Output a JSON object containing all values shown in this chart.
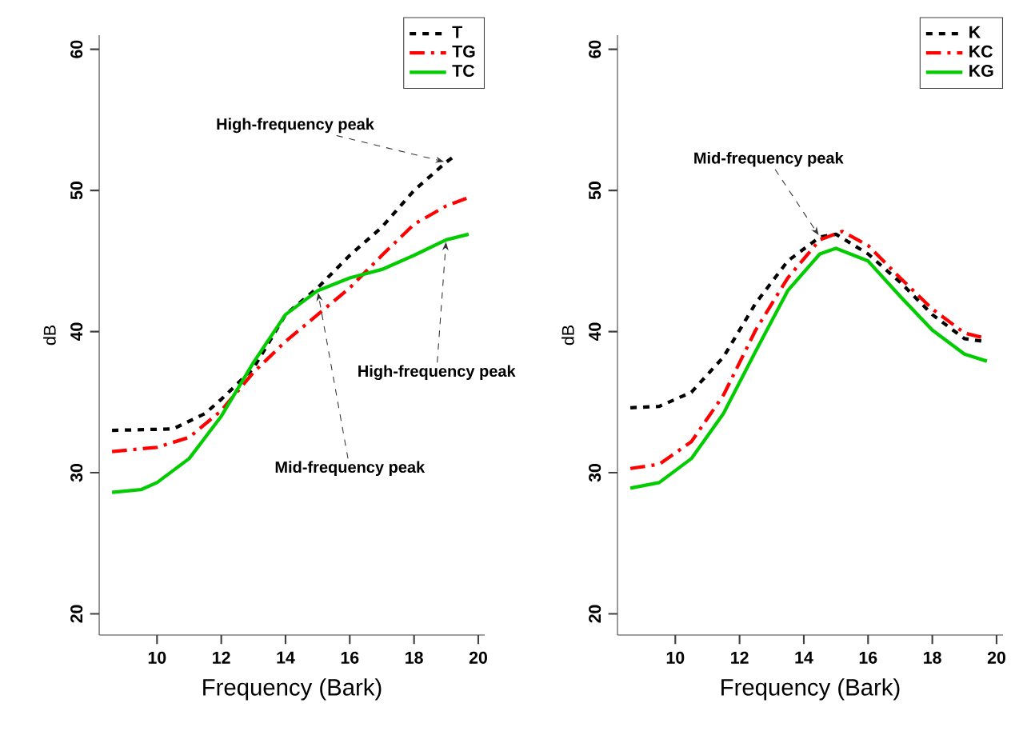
{
  "chart_data": [
    {
      "type": "line",
      "xlabel": "Frequency (Bark)",
      "ylabel": "dB",
      "xlim": [
        8.2,
        20.2
      ],
      "ylim": [
        18.5,
        61
      ],
      "xticks": [
        10,
        12,
        14,
        16,
        18,
        20
      ],
      "yticks": [
        20,
        30,
        40,
        50,
        60
      ],
      "legend": "top right",
      "series": [
        {
          "name": "T",
          "color": "#000000",
          "line_style": "dotted",
          "x": [
            8.6,
            10.5,
            11.5,
            12,
            13,
            14,
            15,
            16,
            17,
            18,
            19,
            19.3
          ],
          "values": [
            33.0,
            33.1,
            34.2,
            35.2,
            37.4,
            41.2,
            43.1,
            45.4,
            47.4,
            50.0,
            52.0,
            52.5
          ]
        },
        {
          "name": "TG",
          "color": "#ff0000",
          "line_style": "dashed",
          "x": [
            8.6,
            10,
            11,
            12,
            13,
            14,
            15,
            16,
            17,
            18,
            19,
            19.7
          ],
          "values": [
            31.5,
            31.8,
            32.5,
            34.4,
            37.1,
            39.3,
            41.2,
            43.1,
            45.4,
            47.6,
            48.9,
            49.5
          ]
        },
        {
          "name": "TC",
          "color": "#00cc00",
          "line_style": "solid",
          "x": [
            8.6,
            9.5,
            10,
            11,
            12,
            13,
            14,
            15,
            16,
            17,
            18,
            19,
            19.7
          ],
          "values": [
            28.6,
            28.8,
            29.3,
            31.0,
            34.0,
            37.8,
            41.2,
            42.9,
            43.8,
            44.4,
            45.4,
            46.5,
            46.9
          ]
        }
      ],
      "annotations": [
        {
          "text": "High-frequency peak",
          "x": 19,
          "y": 52.0
        },
        {
          "text": "High-frequency peak",
          "x": 19,
          "y": 46.5
        },
        {
          "text": "Mid-frequency peak",
          "x": 15,
          "y": 42.9
        }
      ]
    },
    {
      "type": "line",
      "xlabel": "Frequency (Bark)",
      "ylabel": "dB",
      "xlim": [
        8.2,
        20.2
      ],
      "ylim": [
        18.5,
        61
      ],
      "xticks": [
        10,
        12,
        14,
        16,
        18,
        20
      ],
      "yticks": [
        20,
        30,
        40,
        50,
        60
      ],
      "legend": "top right",
      "series": [
        {
          "name": "K",
          "color": "#000000",
          "line_style": "dotted",
          "x": [
            8.6,
            9.5,
            10.5,
            11.5,
            12.5,
            13.5,
            14.5,
            15,
            16,
            17,
            18,
            19,
            19.6
          ],
          "values": [
            34.6,
            34.7,
            35.7,
            38.2,
            42.0,
            45.0,
            46.7,
            46.9,
            45.5,
            43.5,
            41.2,
            39.5,
            39.3
          ]
        },
        {
          "name": "KC",
          "color": "#ff0000",
          "line_style": "dashed",
          "x": [
            8.6,
            9.5,
            10.5,
            11.5,
            12.5,
            13.5,
            14.5,
            15.2,
            16,
            17,
            18,
            19,
            19.7
          ],
          "values": [
            30.3,
            30.6,
            32.2,
            35.5,
            40.1,
            43.8,
            46.5,
            47.1,
            46.1,
            43.8,
            41.6,
            39.9,
            39.5
          ]
        },
        {
          "name": "KG",
          "color": "#00cc00",
          "line_style": "solid",
          "x": [
            8.6,
            9.5,
            10.5,
            11.5,
            12.5,
            13.5,
            14.5,
            15,
            16,
            17,
            18,
            19,
            19.7
          ],
          "values": [
            28.9,
            29.3,
            31.0,
            34.2,
            38.6,
            42.9,
            45.5,
            45.9,
            45.0,
            42.5,
            40.1,
            38.4,
            37.9
          ]
        }
      ],
      "annotations": [
        {
          "text": "Mid-frequency peak",
          "x": 14.5,
          "y": 46.7
        }
      ]
    }
  ]
}
